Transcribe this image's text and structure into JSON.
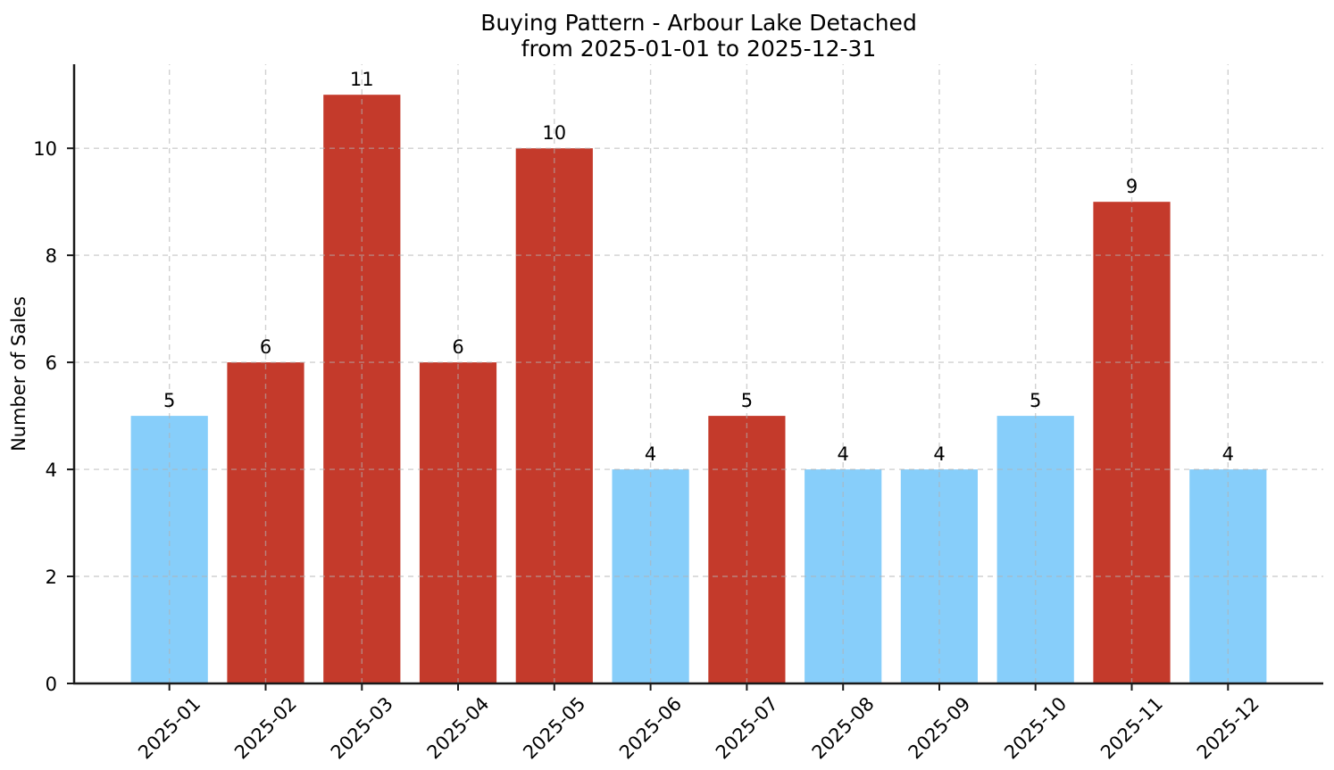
{
  "chart_data": {
    "type": "bar",
    "title": "Buying Pattern - Arbour Lake Detached",
    "subtitle": "from 2025-01-01 to 2025-12-31",
    "xlabel": "",
    "ylabel": "Number of Sales",
    "categories": [
      "2025-01",
      "2025-02",
      "2025-03",
      "2025-04",
      "2025-05",
      "2025-06",
      "2025-07",
      "2025-08",
      "2025-09",
      "2025-10",
      "2025-11",
      "2025-12"
    ],
    "values": [
      5,
      6,
      11,
      6,
      10,
      4,
      5,
      4,
      4,
      5,
      9,
      4
    ],
    "value_labels": [
      "5",
      "6",
      "11",
      "6",
      "10",
      "4",
      "5",
      "4",
      "4",
      "5",
      "9",
      "4"
    ],
    "bar_colors": [
      "#87CEFA",
      "#C43A2B",
      "#C43A2B",
      "#C43A2B",
      "#C43A2B",
      "#87CEFA",
      "#C43A2B",
      "#87CEFA",
      "#87CEFA",
      "#87CEFA",
      "#C43A2B",
      "#87CEFA"
    ],
    "yticks": [
      0,
      2,
      4,
      6,
      8,
      10
    ],
    "ylim": [
      0,
      11.57
    ],
    "bar_width": 0.8,
    "grid": true,
    "grid_style": "dashed",
    "legend": null,
    "colors": {
      "bar_blue": "#87CEFA",
      "bar_red": "#C43A2B",
      "grid": "#b3b3b3",
      "axis": "#1a1a1a",
      "text": "#000000",
      "background": "#ffffff"
    }
  }
}
